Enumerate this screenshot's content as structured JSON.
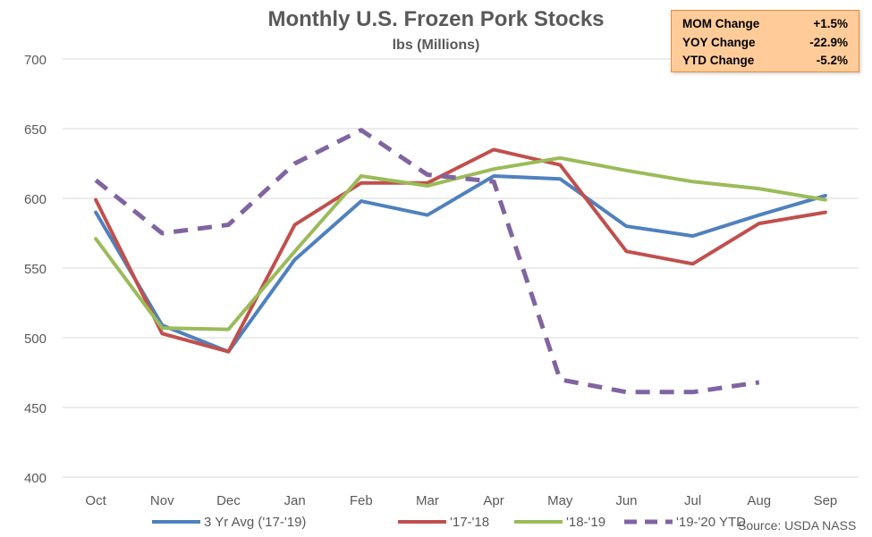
{
  "stats": [
    {
      "label": "MOM Change",
      "value": "+1.5%"
    },
    {
      "label": "YOY Change",
      "value": "-22.9%"
    },
    {
      "label": "YTD Change",
      "value": "-5.2%"
    }
  ],
  "source": "Source: USDA NASS",
  "colors": {
    "axis_text": "#595959",
    "grid": "#D9D9D9",
    "stats_bg": "#FFCC99",
    "stats_border": "#E58A3C"
  },
  "chart_data": {
    "type": "line",
    "title": "Monthly U.S. Frozen Pork Stocks",
    "subtitle": "lbs (Millions)",
    "xlabel": "",
    "ylabel": "",
    "categories": [
      "Oct",
      "Nov",
      "Dec",
      "Jan",
      "Feb",
      "Mar",
      "Apr",
      "May",
      "Jun",
      "Jul",
      "Aug",
      "Sep"
    ],
    "ylim": [
      400,
      700
    ],
    "yticks": [
      400,
      450,
      500,
      550,
      600,
      650,
      700
    ],
    "grid": true,
    "legend": "bottom",
    "series": [
      {
        "name": "3 Yr Avg ('17-'19)",
        "color": "#4F81BD",
        "dashed": false,
        "values": [
          590,
          509,
          490,
          556,
          598,
          588,
          616,
          614,
          580,
          573,
          588,
          602
        ]
      },
      {
        "name": "'17-'18",
        "color": "#C0504D",
        "dashed": false,
        "values": [
          599,
          503,
          490,
          581,
          611,
          611,
          635,
          624,
          562,
          553,
          582,
          590
        ]
      },
      {
        "name": "'18-'19",
        "color": "#9BBB59",
        "dashed": false,
        "values": [
          571,
          507,
          506,
          562,
          616,
          609,
          621,
          629,
          620,
          612,
          607,
          599
        ]
      },
      {
        "name": "'19-'20 YTD",
        "color": "#8064A2",
        "dashed": true,
        "values": [
          613,
          575,
          581,
          625,
          649,
          617,
          612,
          470,
          461,
          461,
          468,
          null
        ]
      }
    ]
  }
}
